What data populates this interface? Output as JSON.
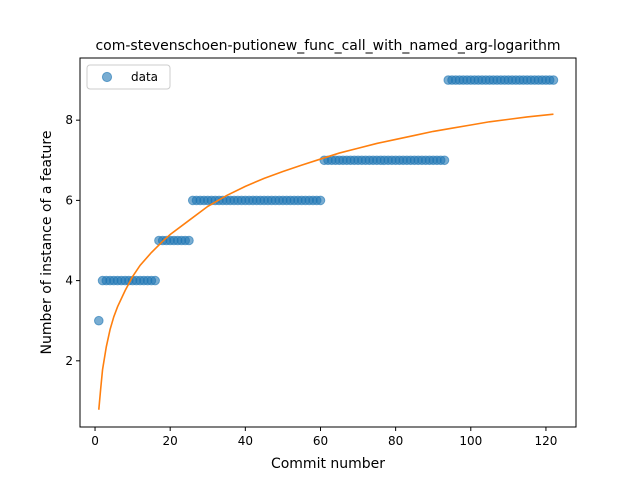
{
  "chart_data": {
    "type": "scatter",
    "title": "com-stevenschoen-putionew_func_call_with_named_arg-logarithm",
    "xlabel": "Commit number",
    "ylabel": "Number of instance of a feature",
    "xlim": [
      -4,
      128
    ],
    "ylim": [
      0.35,
      9.55
    ],
    "xticks": [
      0,
      20,
      40,
      60,
      80,
      100,
      120
    ],
    "yticks": [
      2,
      4,
      6,
      8
    ],
    "grid": false,
    "legend": {
      "placement": "top-left",
      "entries": [
        "data"
      ]
    },
    "series": [
      {
        "name": "data",
        "kind": "scatter",
        "color": "#1f77b4",
        "alpha": 0.6,
        "points": [
          [
            1,
            3
          ],
          [
            2,
            4
          ],
          [
            3,
            4
          ],
          [
            4,
            4
          ],
          [
            5,
            4
          ],
          [
            6,
            4
          ],
          [
            7,
            4
          ],
          [
            8,
            4
          ],
          [
            9,
            4
          ],
          [
            10,
            4
          ],
          [
            11,
            4
          ],
          [
            12,
            4
          ],
          [
            13,
            4
          ],
          [
            14,
            4
          ],
          [
            15,
            4
          ],
          [
            16,
            4
          ],
          [
            17,
            5
          ],
          [
            18,
            5
          ],
          [
            19,
            5
          ],
          [
            20,
            5
          ],
          [
            21,
            5
          ],
          [
            22,
            5
          ],
          [
            23,
            5
          ],
          [
            24,
            5
          ],
          [
            25,
            5
          ],
          [
            26,
            6
          ],
          [
            27,
            6
          ],
          [
            28,
            6
          ],
          [
            29,
            6
          ],
          [
            30,
            6
          ],
          [
            31,
            6
          ],
          [
            32,
            6
          ],
          [
            33,
            6
          ],
          [
            34,
            6
          ],
          [
            35,
            6
          ],
          [
            36,
            6
          ],
          [
            37,
            6
          ],
          [
            38,
            6
          ],
          [
            39,
            6
          ],
          [
            40,
            6
          ],
          [
            41,
            6
          ],
          [
            42,
            6
          ],
          [
            43,
            6
          ],
          [
            44,
            6
          ],
          [
            45,
            6
          ],
          [
            46,
            6
          ],
          [
            47,
            6
          ],
          [
            48,
            6
          ],
          [
            49,
            6
          ],
          [
            50,
            6
          ],
          [
            51,
            6
          ],
          [
            52,
            6
          ],
          [
            53,
            6
          ],
          [
            54,
            6
          ],
          [
            55,
            6
          ],
          [
            56,
            6
          ],
          [
            57,
            6
          ],
          [
            58,
            6
          ],
          [
            59,
            6
          ],
          [
            60,
            6
          ],
          [
            61,
            7
          ],
          [
            62,
            7
          ],
          [
            63,
            7
          ],
          [
            64,
            7
          ],
          [
            65,
            7
          ],
          [
            66,
            7
          ],
          [
            67,
            7
          ],
          [
            68,
            7
          ],
          [
            69,
            7
          ],
          [
            70,
            7
          ],
          [
            71,
            7
          ],
          [
            72,
            7
          ],
          [
            73,
            7
          ],
          [
            74,
            7
          ],
          [
            75,
            7
          ],
          [
            76,
            7
          ],
          [
            77,
            7
          ],
          [
            78,
            7
          ],
          [
            79,
            7
          ],
          [
            80,
            7
          ],
          [
            81,
            7
          ],
          [
            82,
            7
          ],
          [
            83,
            7
          ],
          [
            84,
            7
          ],
          [
            85,
            7
          ],
          [
            86,
            7
          ],
          [
            87,
            7
          ],
          [
            88,
            7
          ],
          [
            89,
            7
          ],
          [
            90,
            7
          ],
          [
            91,
            7
          ],
          [
            92,
            7
          ],
          [
            93,
            7
          ],
          [
            94,
            9
          ],
          [
            95,
            9
          ],
          [
            96,
            9
          ],
          [
            97,
            9
          ],
          [
            98,
            9
          ],
          [
            99,
            9
          ],
          [
            100,
            9
          ],
          [
            101,
            9
          ],
          [
            102,
            9
          ],
          [
            103,
            9
          ],
          [
            104,
            9
          ],
          [
            105,
            9
          ],
          [
            106,
            9
          ],
          [
            107,
            9
          ],
          [
            108,
            9
          ],
          [
            109,
            9
          ],
          [
            110,
            9
          ],
          [
            111,
            9
          ],
          [
            112,
            9
          ],
          [
            113,
            9
          ],
          [
            114,
            9
          ],
          [
            115,
            9
          ],
          [
            116,
            9
          ],
          [
            117,
            9
          ],
          [
            118,
            9
          ],
          [
            119,
            9
          ],
          [
            120,
            9
          ],
          [
            121,
            9
          ],
          [
            122,
            9
          ]
        ]
      },
      {
        "kind": "line",
        "color": "#ff7f0e",
        "points": [
          [
            1,
            0.78
          ],
          [
            1.5,
            1.3
          ],
          [
            2,
            1.78
          ],
          [
            3,
            2.35
          ],
          [
            4,
            2.78
          ],
          [
            5,
            3.1
          ],
          [
            6,
            3.35
          ],
          [
            8,
            3.75
          ],
          [
            10,
            4.1
          ],
          [
            12,
            4.38
          ],
          [
            15,
            4.7
          ],
          [
            18,
            4.98
          ],
          [
            20,
            5.15
          ],
          [
            25,
            5.5
          ],
          [
            30,
            5.85
          ],
          [
            35,
            6.12
          ],
          [
            40,
            6.35
          ],
          [
            45,
            6.55
          ],
          [
            50,
            6.72
          ],
          [
            55,
            6.88
          ],
          [
            60,
            7.03
          ],
          [
            65,
            7.18
          ],
          [
            70,
            7.3
          ],
          [
            75,
            7.42
          ],
          [
            80,
            7.52
          ],
          [
            85,
            7.62
          ],
          [
            90,
            7.72
          ],
          [
            95,
            7.8
          ],
          [
            100,
            7.88
          ],
          [
            105,
            7.96
          ],
          [
            110,
            8.02
          ],
          [
            115,
            8.08
          ],
          [
            122,
            8.15
          ]
        ]
      }
    ]
  }
}
